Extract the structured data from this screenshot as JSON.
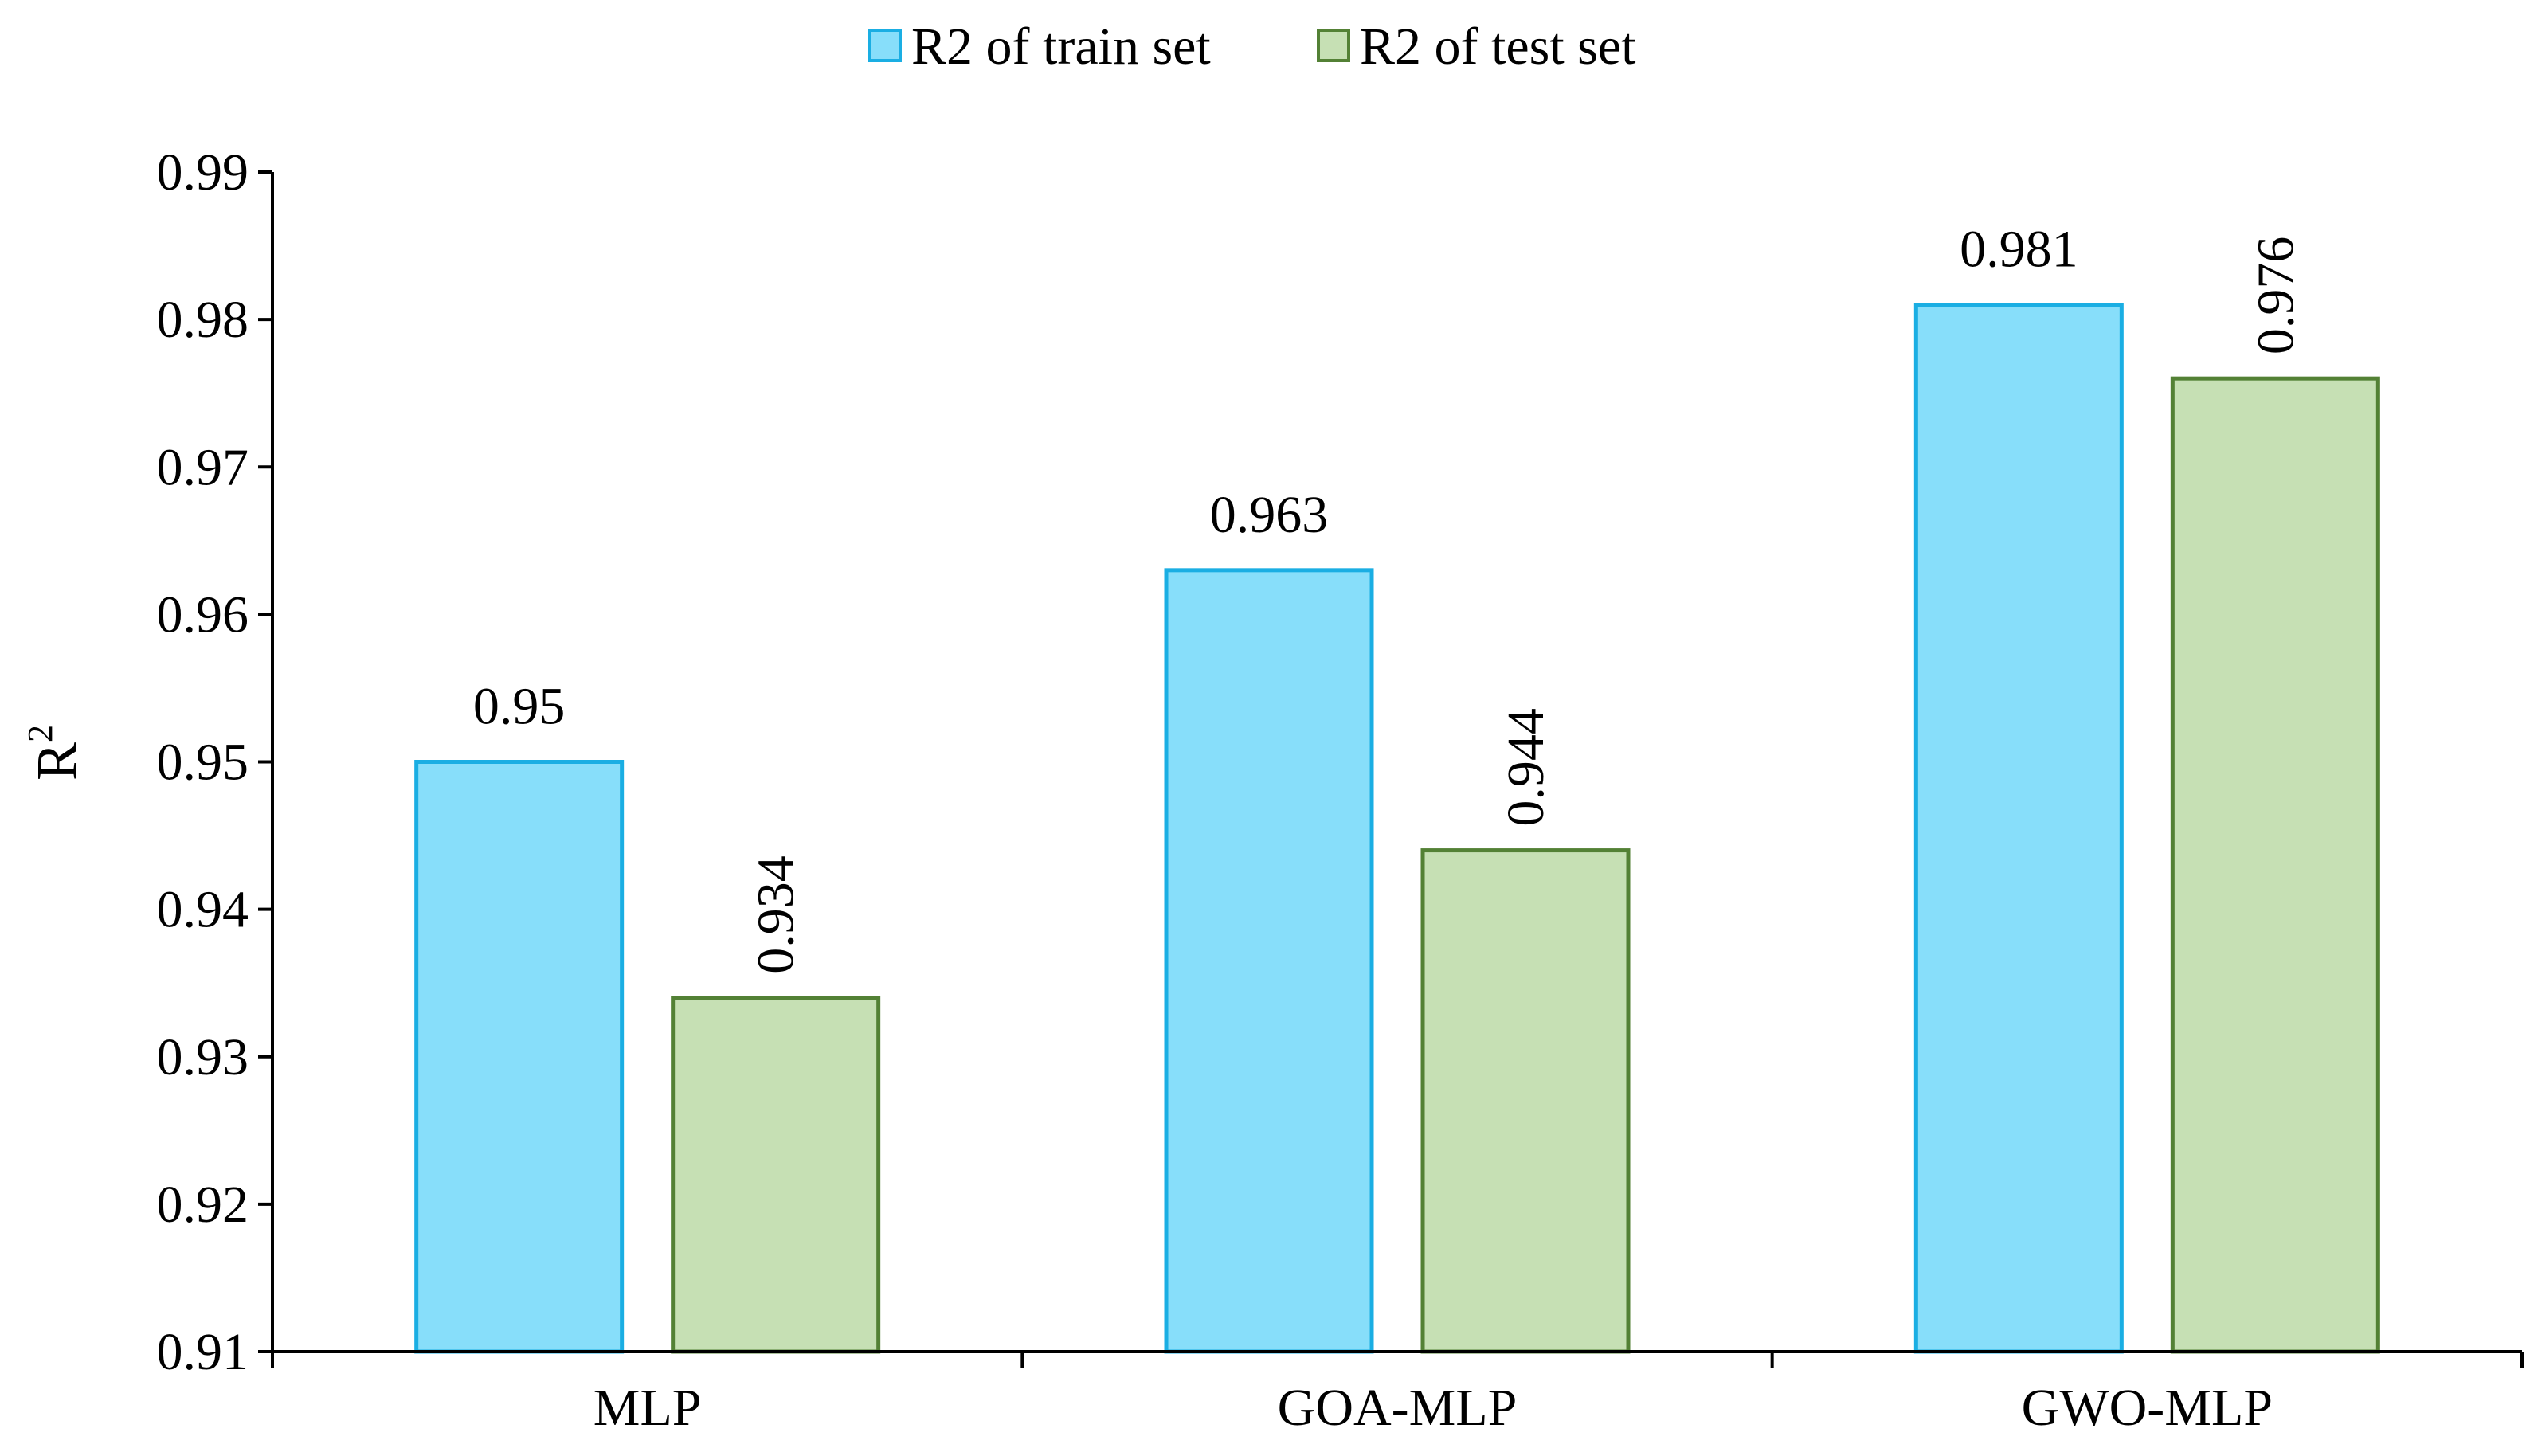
{
  "chart_data": {
    "type": "bar",
    "categories": [
      "MLP",
      "GOA-MLP",
      "GWO-MLP"
    ],
    "series": [
      {
        "name": "R2 of train set",
        "values": [
          0.95,
          0.963,
          0.981
        ],
        "labels": [
          "0.95",
          "0.963",
          "0.981"
        ],
        "label_rotated": false,
        "fill": "#87DEFA",
        "stroke": "#1AAEE3"
      },
      {
        "name": "R2 of test set",
        "values": [
          0.934,
          0.944,
          0.976
        ],
        "labels": [
          "0.934",
          "0.944",
          "0.976"
        ],
        "label_rotated": true,
        "fill": "#C6E0B4",
        "stroke": "#538135"
      }
    ],
    "ylabel": "R",
    "ylabel_superscript": "2",
    "xlabel": "",
    "title": "",
    "ylim": [
      0.91,
      0.99
    ],
    "yticks": [
      "0.91",
      "0.92",
      "0.93",
      "0.94",
      "0.95",
      "0.96",
      "0.97",
      "0.98",
      "0.99"
    ],
    "legend_position": "top-center",
    "grid": false
  }
}
